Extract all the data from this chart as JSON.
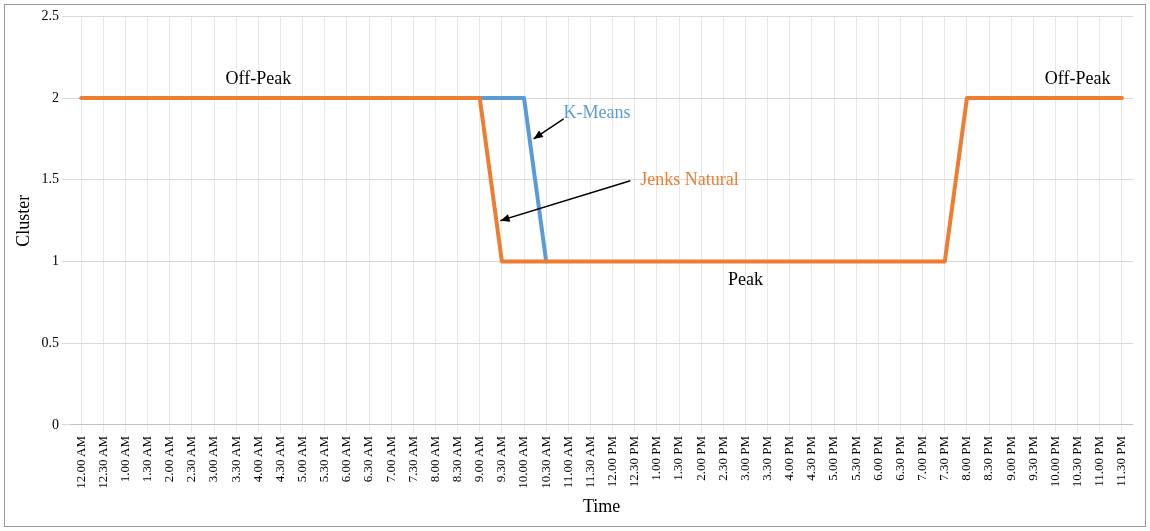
{
  "chart_data": {
    "type": "line",
    "xlabel": "Time",
    "ylabel": "Cluster",
    "categories": [
      "12.00 AM",
      "12.30 AM",
      "1.00 AM",
      "1.30 AM",
      "2.00 AM",
      "2.30 AM",
      "3.00 AM",
      "3.30 AM",
      "4.00 AM",
      "4.30 AM",
      "5.00 AM",
      "5.30 AM",
      "6.00 AM",
      "6.30 AM",
      "7.00 AM",
      "7.30 AM",
      "8.00 AM",
      "8.30 AM",
      "9.00 AM",
      "9.30 AM",
      "10.00 AM",
      "10.30 AM",
      "11.00 AM",
      "11.30 AM",
      "12.00 PM",
      "12.30 PM",
      "1.00 PM",
      "1.30 PM",
      "2.00 PM",
      "2.30 PM",
      "3.00 PM",
      "3.30 PM",
      "4.00 PM",
      "4.30 PM",
      "5.00 PM",
      "5.30 PM",
      "6.00 PM",
      "6.30 PM",
      "7.00 PM",
      "7.30 PM",
      "8.00 PM",
      "8.30 PM",
      "9.00 PM",
      "9.30 PM",
      "10.00 PM",
      "10.30 PM",
      "11.00 PM",
      "11.30 PM"
    ],
    "series": [
      {
        "name": "Jenks Natural",
        "color": "#ed7d31",
        "values": [
          2,
          2,
          2,
          2,
          2,
          2,
          2,
          2,
          2,
          2,
          2,
          2,
          2,
          2,
          2,
          2,
          2,
          2,
          2,
          1,
          1,
          1,
          1,
          1,
          1,
          1,
          1,
          1,
          1,
          1,
          1,
          1,
          1,
          1,
          1,
          1,
          1,
          1,
          1,
          1,
          2,
          2,
          2,
          2,
          2,
          2,
          2,
          2
        ]
      },
      {
        "name": "K-Means",
        "color": "#5b9bd5",
        "values": [
          null,
          null,
          null,
          null,
          null,
          null,
          null,
          null,
          null,
          null,
          null,
          null,
          null,
          null,
          null,
          null,
          null,
          null,
          2,
          2,
          2,
          1,
          null,
          null,
          null,
          null,
          null,
          null,
          null,
          null,
          null,
          null,
          null,
          null,
          null,
          null,
          null,
          null,
          null,
          null,
          null,
          null,
          null,
          null,
          null,
          null,
          null,
          null
        ]
      }
    ],
    "ylim": [
      0,
      2.5
    ],
    "yticks": [
      0,
      0.5,
      1,
      1.5,
      2,
      2.5
    ],
    "grid": true,
    "legend": false,
    "marker": "none",
    "line_style": "solid",
    "annotations": [
      {
        "text": "Off-Peak",
        "x": "4.00 AM",
        "y": 2
      },
      {
        "text": "Off-Peak",
        "x": "10.30 PM",
        "y": 2
      },
      {
        "text": "Peak",
        "x": "3.00 PM",
        "y": 1
      }
    ]
  }
}
